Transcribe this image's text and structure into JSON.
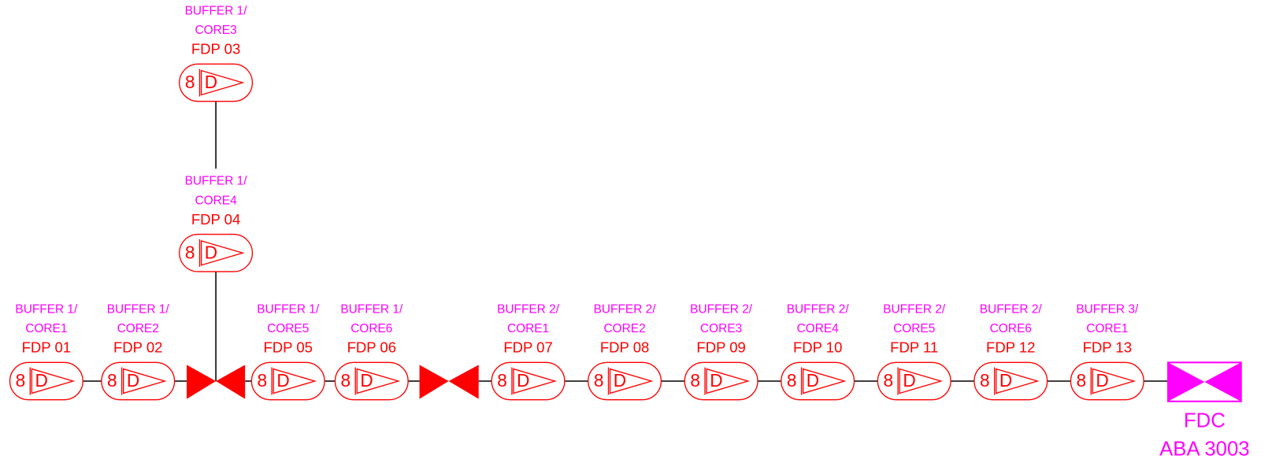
{
  "nodes": [
    {
      "buffer": "BUFFER 1/",
      "core": "CORE3",
      "name": "FDP 03",
      "count": "8",
      "symbol": "D"
    },
    {
      "buffer": "BUFFER 1/",
      "core": "CORE4",
      "name": "FDP 04",
      "count": "8",
      "symbol": "D"
    },
    {
      "buffer": "BUFFER 1/",
      "core": "CORE1",
      "name": "FDP 01",
      "count": "8",
      "symbol": "D"
    },
    {
      "buffer": "BUFFER 1/",
      "core": "CORE2",
      "name": "FDP 02",
      "count": "8",
      "symbol": "D"
    },
    {
      "buffer": "BUFFER 1/",
      "core": "CORE5",
      "name": "FDP 05",
      "count": "8",
      "symbol": "D"
    },
    {
      "buffer": "BUFFER 1/",
      "core": "CORE6",
      "name": "FDP 06",
      "count": "8",
      "symbol": "D"
    },
    {
      "buffer": "BUFFER 2/",
      "core": "CORE1",
      "name": "FDP 07",
      "count": "8",
      "symbol": "D"
    },
    {
      "buffer": "BUFFER 2/",
      "core": "CORE2",
      "name": "FDP 08",
      "count": "8",
      "symbol": "D"
    },
    {
      "buffer": "BUFFER 2/",
      "core": "CORE3",
      "name": "FDP 09",
      "count": "8",
      "symbol": "D"
    },
    {
      "buffer": "BUFFER 2/",
      "core": "CORE4",
      "name": "FDP 10",
      "count": "8",
      "symbol": "D"
    },
    {
      "buffer": "BUFFER 2/",
      "core": "CORE5",
      "name": "FDP 11",
      "count": "8",
      "symbol": "D"
    },
    {
      "buffer": "BUFFER 2/",
      "core": "CORE6",
      "name": "FDP 12",
      "count": "8",
      "symbol": "D"
    },
    {
      "buffer": "BUFFER 3/",
      "core": "CORE1",
      "name": "FDP 13",
      "count": "8",
      "symbol": "D"
    }
  ],
  "fdc": {
    "title": "FDC",
    "id": "ABA 3003"
  }
}
